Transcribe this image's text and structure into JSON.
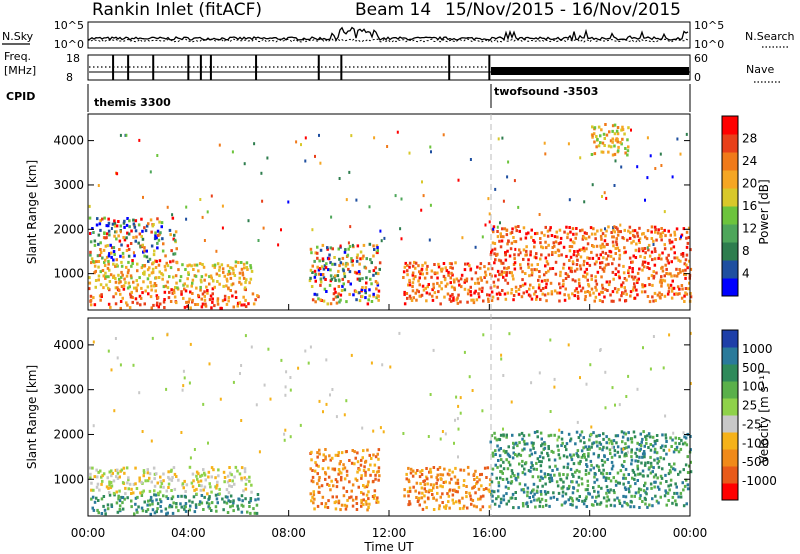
{
  "header": {
    "station": "Rankin Inlet (fitACF)",
    "beam": "Beam 14",
    "date_range": "15/Nov/2015 - 16/Nov/2015"
  },
  "top_panels": {
    "nsky_label": "N.Sky",
    "nsearch_label": "N.Search",
    "noise_ticks": [
      "10^5",
      "10^0"
    ],
    "freq_label_1": "Freq.",
    "freq_label_2": "[MHz]",
    "freq_ticks": [
      "18",
      "8"
    ],
    "nave_label": "Nave",
    "nave_ticks": [
      "60",
      "0"
    ],
    "cpid_label": "CPID",
    "cpid_modes": [
      "themis 3300",
      "twofsound -3503"
    ]
  },
  "power_panel": {
    "ylabel": "Slant Range [km]",
    "yticks": [
      "1000",
      "2000",
      "3000",
      "4000"
    ],
    "cbar_label": "Power [dB]",
    "cbar_ticks": [
      "4",
      "8",
      "12",
      "16",
      "20",
      "24",
      "28"
    ],
    "cbar_colors": [
      "#0000ff",
      "#1f4fa0",
      "#2e7d4e",
      "#4ea65a",
      "#6cc43c",
      "#d8c82a",
      "#f5a623",
      "#f07a1a",
      "#e8401a",
      "#ff0000"
    ]
  },
  "velocity_panel": {
    "ylabel": "Slant Range [km]",
    "yticks": [
      "1000",
      "2000",
      "3000",
      "4000"
    ],
    "cbar_label": "Velocity [m s⁻¹]",
    "cbar_ticks": [
      "1000",
      "500",
      "100",
      "25",
      "-25",
      "-100",
      "-500",
      "-1000"
    ],
    "cbar_colors": [
      "#1e3fa8",
      "#2a7a9a",
      "#2f8a5a",
      "#5ab04a",
      "#8fd24a",
      "#c8c8c8",
      "#f5b21a",
      "#f08a1a",
      "#e85a1a",
      "#ff0000"
    ]
  },
  "xaxis": {
    "label": "Time UT",
    "ticks": [
      "00:00",
      "04:00",
      "08:00",
      "12:00",
      "16:00",
      "20:00",
      "00:00"
    ]
  },
  "chart_data": {
    "type": "heatmap",
    "x_range_hours": [
      0,
      24
    ],
    "y_range_km": [
      180,
      4600
    ],
    "cpid_switch_hour": 16,
    "power_scatter_bands": [
      {
        "t0": 0.0,
        "t1": 6.8,
        "r0": 250,
        "r1": 700,
        "level": "high"
      },
      {
        "t0": 0.0,
        "t1": 6.5,
        "r0": 700,
        "r1": 1300,
        "level": "mid"
      },
      {
        "t0": 0.0,
        "t1": 3.5,
        "r0": 1300,
        "r1": 2300,
        "level": "mixed"
      },
      {
        "t0": 8.8,
        "t1": 11.6,
        "r0": 350,
        "r1": 1700,
        "level": "mixed"
      },
      {
        "t0": 12.5,
        "t1": 16.0,
        "r0": 350,
        "r1": 1300,
        "level": "high"
      },
      {
        "t0": 16.0,
        "t1": 24.0,
        "r0": 400,
        "r1": 2100,
        "level": "high"
      },
      {
        "t0": 20.0,
        "t1": 21.5,
        "r0": 3700,
        "r1": 4400,
        "level": "mid"
      }
    ],
    "velocity_scatter_bands": [
      {
        "t0": 0.0,
        "t1": 6.8,
        "r0": 250,
        "r1": 700,
        "velocity": "positive"
      },
      {
        "t0": 0.0,
        "t1": 6.5,
        "r0": 700,
        "r1": 1300,
        "velocity": "near-zero"
      },
      {
        "t0": 8.8,
        "t1": 11.6,
        "r0": 350,
        "r1": 1700,
        "velocity": "negative"
      },
      {
        "t0": 12.5,
        "t1": 16.0,
        "r0": 350,
        "r1": 1300,
        "velocity": "negative"
      },
      {
        "t0": 16.0,
        "t1": 24.0,
        "r0": 400,
        "r1": 2100,
        "velocity": "positive"
      }
    ]
  }
}
